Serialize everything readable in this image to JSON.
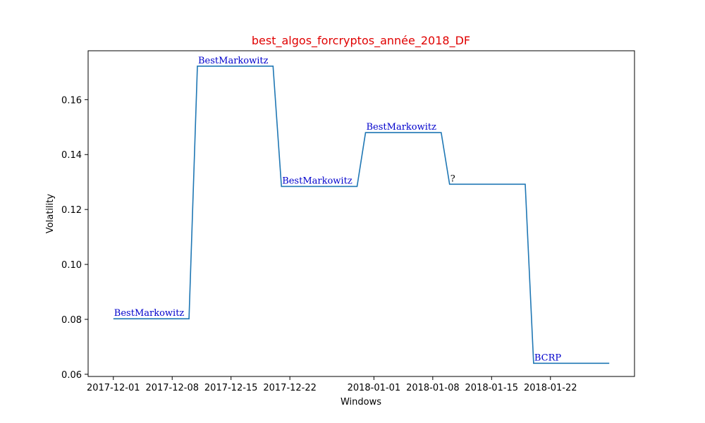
{
  "chart_data": {
    "type": "line",
    "title": "best_algos_forcryptos_année_2018_DF",
    "xlabel": "Windows",
    "ylabel": "Volatility",
    "x_ticks": [
      "2017-12-01",
      "2017-12-08",
      "2017-12-15",
      "2017-12-22",
      "2018-01-01",
      "2018-01-08",
      "2018-01-15",
      "2018-01-22"
    ],
    "y_ticks": [
      "0.06",
      "0.08",
      "0.10",
      "0.12",
      "0.14",
      "0.16"
    ],
    "xlim": [
      "2017-11-28",
      "2018-02-01"
    ],
    "ylim": [
      0.0592,
      0.1778
    ],
    "series": [
      {
        "color": "#1f77b4",
        "points": [
          {
            "x": "2017-12-01",
            "y": 0.0802
          },
          {
            "x": "2017-12-10",
            "y": 0.0802
          },
          {
            "x": "2017-12-11",
            "y": 0.1722
          },
          {
            "x": "2017-12-20",
            "y": 0.1722
          },
          {
            "x": "2017-12-21",
            "y": 0.1284
          },
          {
            "x": "2017-12-30",
            "y": 0.1284
          },
          {
            "x": "2017-12-31",
            "y": 0.148
          },
          {
            "x": "2018-01-09",
            "y": 0.148
          },
          {
            "x": "2018-01-10",
            "y": 0.1292
          },
          {
            "x": "2018-01-19",
            "y": 0.1292
          },
          {
            "x": "2018-01-20",
            "y": 0.064
          },
          {
            "x": "2018-01-29",
            "y": 0.064
          }
        ]
      }
    ],
    "annotations": [
      {
        "text": "BestMarkowitz",
        "x": "2017-12-01",
        "y": 0.0802,
        "color": "#0000cc"
      },
      {
        "text": "BestMarkowitz",
        "x": "2017-12-11",
        "y": 0.1722,
        "color": "#0000cc"
      },
      {
        "text": "BestMarkowitz",
        "x": "2017-12-21",
        "y": 0.1284,
        "color": "#0000cc"
      },
      {
        "text": "BestMarkowitz",
        "x": "2017-12-31",
        "y": 0.148,
        "color": "#0000cc"
      },
      {
        "text": "?",
        "x": "2018-01-10",
        "y": 0.1292,
        "color": "#000000"
      },
      {
        "text": "BCRP",
        "x": "2018-01-20",
        "y": 0.064,
        "color": "#0000cc"
      }
    ],
    "grid": false,
    "title_color": "#e00000"
  }
}
